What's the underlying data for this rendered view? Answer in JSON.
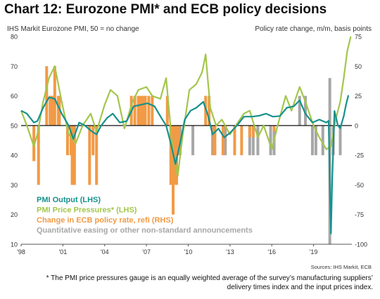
{
  "header": {
    "title": "Chart 12: Eurozone PMI* and ECB policy decisions",
    "left_axis_note": "IHS Markit Eurozone PMI, 50 = no change",
    "right_axis_note": "Policy rate change, m/m, basis points"
  },
  "source": "Sources: IHS Markit, ECB",
  "footnote": {
    "line1": "* The PMI price pressures gauge is an equally weighted average of the survey’s manufacturing suppliers’",
    "line2": "delivery times index and the input prices index."
  },
  "chart_data": {
    "type": "line",
    "x_tick_labels": [
      "'98",
      "'01",
      "'04",
      "'07",
      "'10",
      "'13",
      "'16",
      "'19"
    ],
    "xlim": [
      "1998-01",
      "2021-10"
    ],
    "ylim_left": [
      10,
      80
    ],
    "yticks_left": [
      10,
      20,
      30,
      40,
      50,
      60,
      70,
      80
    ],
    "ylim_right": [
      -100,
      75
    ],
    "yticks_right": [
      -100,
      -75,
      -50,
      -25,
      0,
      25,
      50,
      75
    ],
    "legend_position": "bottom-left",
    "colors": {
      "output": "#17918c",
      "prices": "#a3c64c",
      "refi": "#f29a45",
      "qe": "#a7a7a7",
      "zero_line": "#111111",
      "axis": "#555555"
    },
    "series": [
      {
        "name": "PMI  Output (LHS)",
        "axis": "left",
        "x": [
          "1998-01",
          "1998-06",
          "1998-12",
          "1999-03",
          "1999-08",
          "2000-01",
          "2000-06",
          "2000-12",
          "2001-06",
          "2001-10",
          "2002-03",
          "2002-08",
          "2003-02",
          "2003-06",
          "2003-10",
          "2004-03",
          "2004-08",
          "2005-02",
          "2005-08",
          "2006-02",
          "2006-08",
          "2007-02",
          "2007-08",
          "2008-02",
          "2008-06",
          "2008-10",
          "2009-02",
          "2009-06",
          "2009-10",
          "2010-03",
          "2010-08",
          "2011-02",
          "2011-06",
          "2011-10",
          "2012-03",
          "2012-08",
          "2013-01",
          "2013-07",
          "2014-01",
          "2014-08",
          "2015-02",
          "2015-08",
          "2016-02",
          "2016-08",
          "2017-02",
          "2017-08",
          "2018-01",
          "2018-06",
          "2018-12",
          "2019-06",
          "2019-12",
          "2020-02",
          "2020-03",
          "2020-04",
          "2020-05",
          "2020-07",
          "2020-10",
          "2020-12",
          "2021-03",
          "2021-05",
          "2021-07"
        ],
        "values": [
          55,
          54,
          51,
          51.5,
          56,
          59.5,
          59,
          54,
          50,
          45.5,
          51,
          50,
          48,
          47,
          50,
          52.5,
          54,
          51,
          51.5,
          56.5,
          57,
          57.5,
          56.5,
          52.5,
          50,
          44,
          37,
          44,
          52,
          55,
          56,
          58,
          53.5,
          47,
          49,
          46,
          47.5,
          50,
          53,
          53,
          53.3,
          54,
          53,
          53.2,
          56,
          56.5,
          58.5,
          54,
          51,
          52,
          51,
          51.6,
          29.7,
          13.6,
          31,
          54.9,
          50,
          49.1,
          53.2,
          57.1,
          60.2
        ]
      },
      {
        "name": "PMI Price Pressures* (LHS)",
        "axis": "left",
        "x": [
          "1998-01",
          "1998-06",
          "1998-12",
          "1999-03",
          "1999-08",
          "2000-01",
          "2000-06",
          "2000-12",
          "2001-06",
          "2001-12",
          "2002-06",
          "2003-01",
          "2003-06",
          "2004-01",
          "2004-06",
          "2004-12",
          "2005-06",
          "2006-01",
          "2006-06",
          "2007-01",
          "2007-06",
          "2008-01",
          "2008-06",
          "2008-12",
          "2009-04",
          "2009-08",
          "2010-02",
          "2010-08",
          "2011-01",
          "2011-04",
          "2011-08",
          "2012-01",
          "2012-06",
          "2013-01",
          "2013-06",
          "2014-01",
          "2014-06",
          "2015-01",
          "2015-06",
          "2016-01",
          "2016-06",
          "2017-01",
          "2017-06",
          "2018-01",
          "2018-06",
          "2019-01",
          "2019-06",
          "2019-12",
          "2020-04",
          "2020-08",
          "2020-12",
          "2021-03",
          "2021-06",
          "2021-09"
        ],
        "values": [
          55,
          50,
          43,
          47,
          58,
          66,
          70,
          58,
          47,
          44,
          50,
          54,
          48,
          57,
          62,
          60,
          49,
          58,
          62,
          63,
          60,
          59,
          66,
          40,
          33,
          46,
          62,
          64,
          68,
          74,
          56,
          50,
          52,
          47,
          50,
          54,
          55,
          46,
          50,
          42,
          50,
          60,
          55,
          63,
          58,
          50,
          46,
          42,
          43,
          52,
          58,
          66,
          75,
          80
        ]
      }
    ],
    "refi_series": {
      "name": "Change in ECB policy rate, refi (RHS)",
      "axis": "right",
      "events": [
        {
          "x": "1998-12",
          "value": -30
        },
        {
          "x": "1999-04",
          "value": -50
        },
        {
          "x": "1999-11",
          "value": 50
        },
        {
          "x": "2000-02",
          "value": 25
        },
        {
          "x": "2000-03",
          "value": 25
        },
        {
          "x": "2000-04",
          "value": 25
        },
        {
          "x": "2000-06",
          "value": 50
        },
        {
          "x": "2000-09",
          "value": 25
        },
        {
          "x": "2000-10",
          "value": 25
        },
        {
          "x": "2001-05",
          "value": -25
        },
        {
          "x": "2001-08",
          "value": -25
        },
        {
          "x": "2001-09",
          "value": -50
        },
        {
          "x": "2001-11",
          "value": -50
        },
        {
          "x": "2002-12",
          "value": -50
        },
        {
          "x": "2003-03",
          "value": -25
        },
        {
          "x": "2003-06",
          "value": -50
        },
        {
          "x": "2005-12",
          "value": 25
        },
        {
          "x": "2006-03",
          "value": 25
        },
        {
          "x": "2006-06",
          "value": 25
        },
        {
          "x": "2006-08",
          "value": 25
        },
        {
          "x": "2006-10",
          "value": 25
        },
        {
          "x": "2006-12",
          "value": 25
        },
        {
          "x": "2007-03",
          "value": 25
        },
        {
          "x": "2007-06",
          "value": 25
        },
        {
          "x": "2008-07",
          "value": 25
        },
        {
          "x": "2008-10",
          "value": -50
        },
        {
          "x": "2008-11",
          "value": -50
        },
        {
          "x": "2008-12",
          "value": -75
        },
        {
          "x": "2009-01",
          "value": -50
        },
        {
          "x": "2009-03",
          "value": -50
        },
        {
          "x": "2009-04",
          "value": -25
        },
        {
          "x": "2009-05",
          "value": -25
        },
        {
          "x": "2011-04",
          "value": 25
        },
        {
          "x": "2011-07",
          "value": 25
        },
        {
          "x": "2011-11",
          "value": -25
        },
        {
          "x": "2011-12",
          "value": -25
        },
        {
          "x": "2012-07",
          "value": -25
        },
        {
          "x": "2013-05",
          "value": -25
        },
        {
          "x": "2013-11",
          "value": -25
        },
        {
          "x": "2014-06",
          "value": -10
        },
        {
          "x": "2014-09",
          "value": -10
        },
        {
          "x": "2016-03",
          "value": -5
        }
      ]
    },
    "qe_series": {
      "name": "Quantitative easing or other non-standard announcements",
      "markers": [
        {
          "x": "2009-06",
          "kind": "down"
        },
        {
          "x": "2010-05",
          "kind": "down"
        },
        {
          "x": "2011-10",
          "kind": "down"
        },
        {
          "x": "2012-09",
          "kind": "down"
        },
        {
          "x": "2014-06",
          "kind": "down"
        },
        {
          "x": "2014-09",
          "kind": "down"
        },
        {
          "x": "2015-01",
          "kind": "down"
        },
        {
          "x": "2015-12",
          "kind": "down"
        },
        {
          "x": "2016-03",
          "kind": "down"
        },
        {
          "x": "2018-01",
          "kind": "up"
        },
        {
          "x": "2018-06",
          "kind": "up"
        },
        {
          "x": "2018-12",
          "kind": "down"
        },
        {
          "x": "2019-03",
          "kind": "down"
        },
        {
          "x": "2019-09",
          "kind": "down"
        },
        {
          "x": "2020-03",
          "kind": "full"
        },
        {
          "x": "2020-06",
          "kind": "down"
        },
        {
          "x": "2020-12",
          "kind": "down"
        }
      ]
    }
  }
}
